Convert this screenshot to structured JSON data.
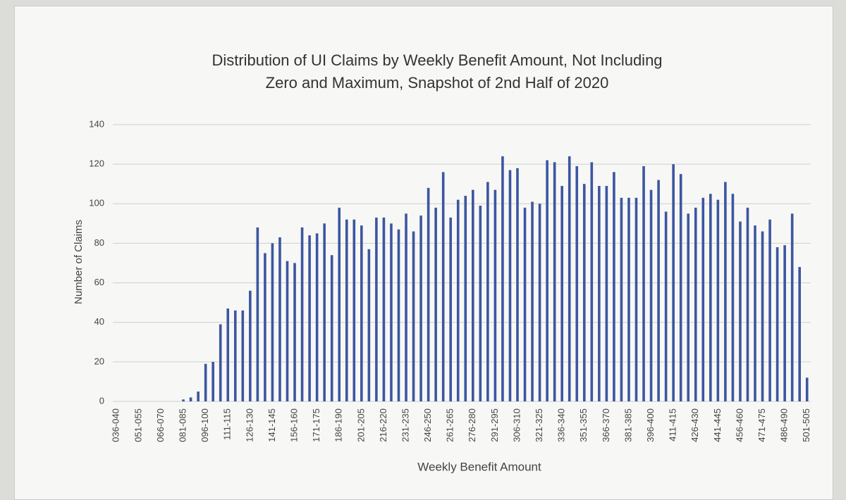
{
  "chart_data": {
    "type": "bar",
    "title": "Distribution of UI Claims by Weekly Benefit Amount, Not Including Zero and Maximum, Snapshot of 2nd Half of 2020",
    "x_label": "Weekly Benefit Amount",
    "y_label": "Number of Claims",
    "categories": [
      "036-040",
      null,
      null,
      "051-055",
      null,
      null,
      "066-070",
      null,
      null,
      "081-085",
      null,
      null,
      "096-100",
      null,
      null,
      "111-115",
      null,
      null,
      "126-130",
      null,
      null,
      "141-145",
      null,
      null,
      "156-160",
      null,
      null,
      "171-175",
      null,
      null,
      "186-190",
      null,
      null,
      "201-205",
      null,
      null,
      "216-220",
      null,
      null,
      "231-235",
      null,
      null,
      "246-250",
      null,
      null,
      "261-265",
      null,
      null,
      "276-280",
      null,
      null,
      "291-295",
      null,
      null,
      "306-310",
      null,
      null,
      "321-325",
      null,
      null,
      "336-340",
      null,
      null,
      "351-355",
      null,
      null,
      "366-370",
      null,
      null,
      "381-385",
      null,
      null,
      "396-400",
      null,
      null,
      "411-415",
      null,
      null,
      "426-430",
      null,
      null,
      "441-445",
      null,
      null,
      "456-460",
      null,
      null,
      "471-475",
      null,
      null,
      "486-490",
      null,
      null,
      "501-505"
    ],
    "values": [
      0,
      0,
      0,
      0,
      0,
      0,
      0,
      0,
      0,
      1,
      2,
      5,
      19,
      20,
      39,
      47,
      46,
      46,
      56,
      88,
      75,
      80,
      83,
      71,
      70,
      88,
      84,
      85,
      90,
      74,
      98,
      92,
      92,
      89,
      77,
      93,
      93,
      90,
      87,
      95,
      86,
      94,
      108,
      98,
      116,
      93,
      102,
      104,
      107,
      99,
      111,
      107,
      124,
      117,
      118,
      98,
      101,
      100,
      122,
      121,
      109,
      124,
      119,
      110,
      121,
      109,
      109,
      116,
      103,
      103,
      103,
      119,
      107,
      112,
      96,
      120,
      115,
      95,
      98,
      103,
      105,
      102,
      111,
      105,
      91,
      98,
      89,
      86,
      92,
      78,
      79,
      95,
      68,
      12
    ],
    "color": "#3c56a0",
    "ylim": [
      0,
      140
    ],
    "yticks": [
      0,
      20,
      40,
      60,
      80,
      100,
      120,
      140
    ],
    "grid": true
  }
}
